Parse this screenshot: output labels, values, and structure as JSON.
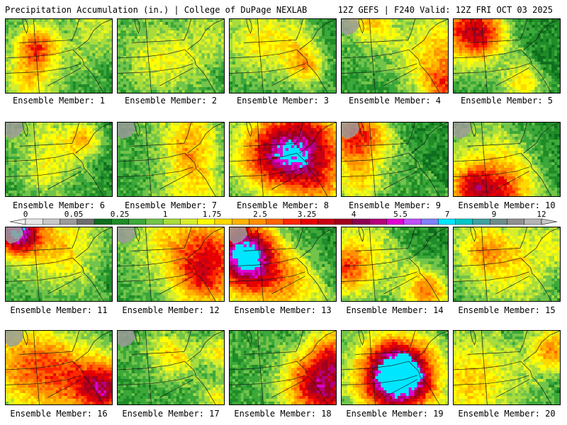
{
  "header": {
    "left_title": "Precipitation Accumulation (in.) | College of DuPage NEXLAB",
    "right_title": "12Z GEFS | F240 Valid: 12Z FRI OCT 03 2025"
  },
  "members": [
    {
      "label": "Ensemble Member: 1",
      "seed": 11,
      "intensity": 0.55
    },
    {
      "label": "Ensemble Member: 2",
      "seed": 23,
      "intensity": 0.25
    },
    {
      "label": "Ensemble Member: 3",
      "seed": 37,
      "intensity": 0.45
    },
    {
      "label": "Ensemble Member: 4",
      "seed": 41,
      "intensity": 0.5
    },
    {
      "label": "Ensemble Member: 5",
      "seed": 53,
      "intensity": 0.5
    },
    {
      "label": "Ensemble Member: 6",
      "seed": 67,
      "intensity": 0.45
    },
    {
      "label": "Ensemble Member: 7",
      "seed": 71,
      "intensity": 0.3
    },
    {
      "label": "Ensemble Member: 8",
      "seed": 83,
      "intensity": 0.6
    },
    {
      "label": "Ensemble Member: 9",
      "seed": 97,
      "intensity": 0.45
    },
    {
      "label": "Ensemble Member: 10",
      "seed": 101,
      "intensity": 0.45
    },
    {
      "label": "Ensemble Member: 11",
      "seed": 113,
      "intensity": 0.4
    },
    {
      "label": "Ensemble Member: 12",
      "seed": 127,
      "intensity": 0.6
    },
    {
      "label": "Ensemble Member: 13",
      "seed": 131,
      "intensity": 0.7
    },
    {
      "label": "Ensemble Member: 14",
      "seed": 149,
      "intensity": 0.55
    },
    {
      "label": "Ensemble Member: 15",
      "seed": 151,
      "intensity": 0.5
    },
    {
      "label": "Ensemble Member: 16",
      "seed": 163,
      "intensity": 0.7
    },
    {
      "label": "Ensemble Member: 17",
      "seed": 173,
      "intensity": 0.4
    },
    {
      "label": "Ensemble Member: 18",
      "seed": 181,
      "intensity": 0.75
    },
    {
      "label": "Ensemble Member: 19",
      "seed": 191,
      "intensity": 0.6
    },
    {
      "label": "Ensemble Member: 20",
      "seed": 197,
      "intensity": 0.4
    }
  ],
  "colorbar": {
    "labels": [
      "0",
      "0.05",
      "0.25",
      "1",
      "1.75",
      "2.5",
      "3.25",
      "4",
      "5.5",
      "7",
      "9",
      "12"
    ],
    "colors": [
      "#e6e6e6",
      "#c8c8c8",
      "#9a9a9a",
      "#6e6e6e",
      "#0f6e1e",
      "#1f8c28",
      "#3ca83a",
      "#72c44a",
      "#a8dc3c",
      "#d8ee2c",
      "#ffff00",
      "#ffd800",
      "#ffb400",
      "#ff9000",
      "#ff6400",
      "#ff2800",
      "#e60000",
      "#c80014",
      "#a0001e",
      "#8c0050",
      "#b4007a",
      "#e000d2",
      "#c050ff",
      "#8080ff",
      "#00e6ff",
      "#00c8c8",
      "#40a0a0",
      "#6e8c8c",
      "#909090",
      "#b4b4b4"
    ]
  }
}
